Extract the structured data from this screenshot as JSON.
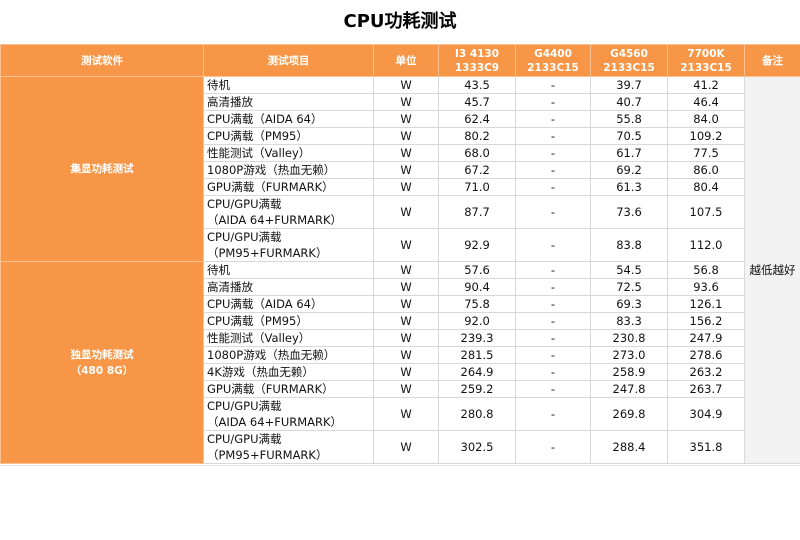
{
  "title": "CPU功耗测试",
  "headers": {
    "software": "测试软件",
    "item": "测试项目",
    "unit": "单位",
    "cpu1": [
      "I3 4130",
      "1333C9"
    ],
    "cpu2": [
      "G4400",
      "2133C15"
    ],
    "cpu3": [
      "G4560",
      "2133C15"
    ],
    "cpu4": [
      "7700K",
      "2133C15"
    ],
    "note": "备注"
  },
  "note": "越低越好",
  "groups": [
    {
      "label": [
        "集显功耗测试"
      ],
      "rows": [
        {
          "item": [
            "待机"
          ],
          "unit": "W",
          "v": [
            "43.5",
            "-",
            "39.7",
            "41.2"
          ]
        },
        {
          "item": [
            "高清播放"
          ],
          "unit": "W",
          "v": [
            "45.7",
            "-",
            "40.7",
            "46.4"
          ]
        },
        {
          "item": [
            "CPU满载（AIDA 64）"
          ],
          "unit": "W",
          "v": [
            "62.4",
            "-",
            "55.8",
            "84.0"
          ]
        },
        {
          "item": [
            "CPU满载（PM95）"
          ],
          "unit": "W",
          "v": [
            "80.2",
            "-",
            "70.5",
            "109.2"
          ]
        },
        {
          "item": [
            "性能测试（Valley）"
          ],
          "unit": "W",
          "v": [
            "68.0",
            "-",
            "61.7",
            "77.5"
          ]
        },
        {
          "item": [
            "1080P游戏（热血无赖）"
          ],
          "unit": "W",
          "v": [
            "67.2",
            "-",
            "69.2",
            "86.0"
          ]
        },
        {
          "item": [
            "GPU满载（FURMARK）"
          ],
          "unit": "W",
          "v": [
            "71.0",
            "-",
            "61.3",
            "80.4"
          ]
        },
        {
          "item": [
            "CPU/GPU满载",
            "（AIDA 64+FURMARK）"
          ],
          "unit": "W",
          "v": [
            "87.7",
            "-",
            "73.6",
            "107.5"
          ]
        },
        {
          "item": [
            "CPU/GPU满载",
            "（PM95+FURMARK）"
          ],
          "unit": "W",
          "v": [
            "92.9",
            "-",
            "83.8",
            "112.0"
          ]
        }
      ]
    },
    {
      "label": [
        "独显功耗测试",
        "（480 8G）"
      ],
      "rows": [
        {
          "item": [
            "待机"
          ],
          "unit": "W",
          "v": [
            "57.6",
            "-",
            "54.5",
            "56.8"
          ]
        },
        {
          "item": [
            "高清播放"
          ],
          "unit": "W",
          "v": [
            "90.4",
            "-",
            "72.5",
            "93.6"
          ]
        },
        {
          "item": [
            "CPU满载（AIDA 64）"
          ],
          "unit": "W",
          "v": [
            "75.8",
            "-",
            "69.3",
            "126.1"
          ]
        },
        {
          "item": [
            "CPU满载（PM95）"
          ],
          "unit": "W",
          "v": [
            "92.0",
            "-",
            "83.3",
            "156.2"
          ]
        },
        {
          "item": [
            "性能测试（Valley）"
          ],
          "unit": "W",
          "v": [
            "239.3",
            "-",
            "230.8",
            "247.9"
          ]
        },
        {
          "item": [
            "1080P游戏（热血无赖）"
          ],
          "unit": "W",
          "v": [
            "281.5",
            "-",
            "273.0",
            "278.6"
          ]
        },
        {
          "item": [
            "4K游戏（热血无赖）"
          ],
          "unit": "W",
          "v": [
            "264.9",
            "-",
            "258.9",
            "263.2"
          ]
        },
        {
          "item": [
            "GPU满载（FURMARK）"
          ],
          "unit": "W",
          "v": [
            "259.2",
            "-",
            "247.8",
            "263.7"
          ]
        },
        {
          "item": [
            "CPU/GPU满载",
            "（AIDA 64+FURMARK）"
          ],
          "unit": "W",
          "v": [
            "280.8",
            "-",
            "269.8",
            "304.9"
          ]
        },
        {
          "item": [
            "CPU/GPU满载",
            "（PM95+FURMARK）"
          ],
          "unit": "W",
          "v": [
            "302.5",
            "-",
            "288.4",
            "351.8"
          ]
        }
      ]
    }
  ]
}
